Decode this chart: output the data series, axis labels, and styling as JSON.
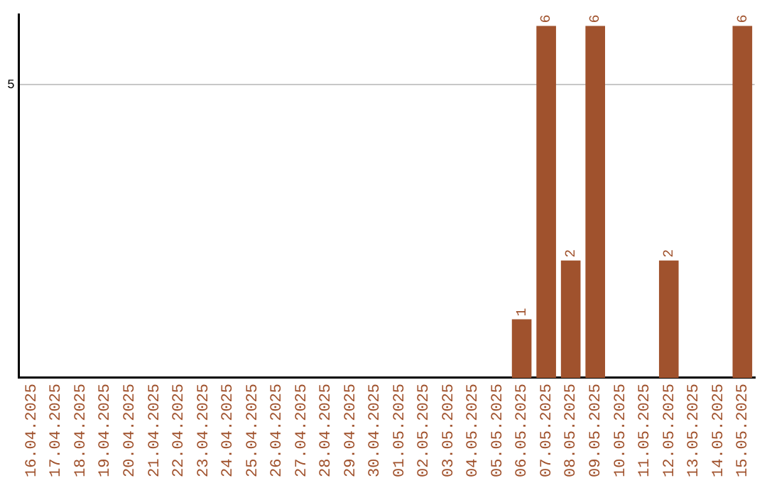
{
  "chart_data": {
    "type": "bar",
    "categories": [
      "16.04.2025",
      "17.04.2025",
      "18.04.2025",
      "19.04.2025",
      "20.04.2025",
      "21.04.2025",
      "22.04.2025",
      "23.04.2025",
      "24.04.2025",
      "25.04.2025",
      "26.04.2025",
      "27.04.2025",
      "28.04.2025",
      "29.04.2025",
      "30.04.2025",
      "01.05.2025",
      "02.05.2025",
      "03.05.2025",
      "04.05.2025",
      "05.05.2025",
      "06.05.2025",
      "07.05.2025",
      "08.05.2025",
      "09.05.2025",
      "10.05.2025",
      "11.05.2025",
      "12.05.2025",
      "13.05.2025",
      "14.05.2025",
      "15.05.2025"
    ],
    "values": [
      null,
      null,
      null,
      null,
      null,
      null,
      null,
      null,
      null,
      null,
      null,
      null,
      null,
      null,
      null,
      null,
      null,
      null,
      null,
      null,
      1,
      6,
      2,
      6,
      null,
      null,
      2,
      null,
      null,
      6
    ],
    "value_labels": [
      null,
      null,
      null,
      null,
      null,
      null,
      null,
      null,
      null,
      null,
      null,
      null,
      null,
      null,
      null,
      null,
      null,
      null,
      null,
      null,
      "1",
      "6",
      "2",
      "6",
      null,
      null,
      "2",
      null,
      null,
      "6"
    ],
    "color": "#a0522d",
    "ylim": [
      0,
      6.2
    ],
    "yticks": [
      5
    ],
    "grid": "y",
    "legend": false
  }
}
